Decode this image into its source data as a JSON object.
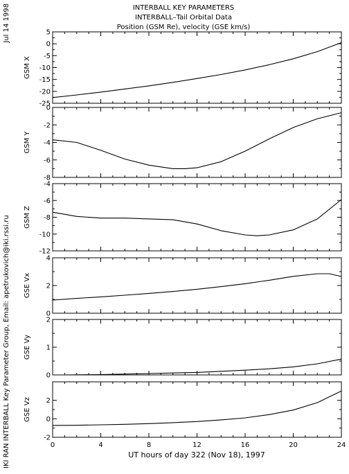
{
  "header": {
    "title_line1": "INTERBALL KEY PARAMETERS",
    "title_line2": "INTERBALL–Tail Orbital Data",
    "title_line3": "Position (GSM Re), velocity (GSE km/s)",
    "date_stamp": "Jul 14 1998",
    "credit": "IKI RAN INTERBALL Key Parameter Group, Email: apetrukovich@iki.rssi.ru"
  },
  "chart_data": {
    "type": "line",
    "xlabel": "UT hours of day 322 (Nov 18), 1997",
    "xlim": [
      0,
      24
    ],
    "xticks": [
      0,
      4,
      8,
      12,
      16,
      20,
      24
    ],
    "panels": [
      {
        "ylabel": "GSM X",
        "ylim": [
          -25,
          5
        ],
        "yticks": [
          -25,
          -20,
          -15,
          -10,
          -5,
          0,
          5
        ],
        "x": [
          0,
          2,
          4,
          6,
          8,
          10,
          12,
          14,
          16,
          18,
          20,
          22,
          24
        ],
        "values": [
          -22.6,
          -21.5,
          -20.3,
          -19.0,
          -17.7,
          -16.2,
          -14.6,
          -12.9,
          -11.0,
          -8.8,
          -6.3,
          -3.3,
          0.5
        ]
      },
      {
        "ylabel": "GSM Y",
        "ylim": [
          -8,
          0
        ],
        "yticks": [
          -8,
          -6,
          -4,
          -2,
          0
        ],
        "x": [
          0,
          2,
          4,
          6,
          8,
          10,
          11,
          12,
          14,
          16,
          18,
          20,
          22,
          24
        ],
        "values": [
          -3.7,
          -4.0,
          -4.9,
          -5.9,
          -6.6,
          -7.0,
          -7.0,
          -6.9,
          -6.2,
          -5.0,
          -3.6,
          -2.3,
          -1.3,
          -0.6
        ]
      },
      {
        "ylabel": "GSM Z",
        "ylim": [
          -12,
          -4
        ],
        "yticks": [
          -12,
          -10,
          -8,
          -6,
          -4
        ],
        "x": [
          0,
          2,
          4,
          6,
          8,
          10,
          12,
          14,
          16,
          17,
          18,
          20,
          22,
          24
        ],
        "values": [
          -7.4,
          -7.9,
          -8.1,
          -8.1,
          -8.2,
          -8.3,
          -8.8,
          -9.6,
          -10.1,
          -10.2,
          -10.1,
          -9.5,
          -8.2,
          -5.9
        ]
      },
      {
        "ylabel": "GSE Vx",
        "ylim": [
          0,
          4
        ],
        "yticks": [
          0,
          2,
          4
        ],
        "x": [
          0,
          2,
          4,
          6,
          8,
          10,
          12,
          14,
          16,
          18,
          20,
          22,
          23,
          24
        ],
        "values": [
          0.95,
          1.07,
          1.18,
          1.3,
          1.43,
          1.57,
          1.73,
          1.92,
          2.13,
          2.38,
          2.66,
          2.85,
          2.85,
          2.65
        ]
      },
      {
        "ylabel": "GSE Vy",
        "ylim": [
          0,
          2
        ],
        "yticks": [
          0,
          1,
          2
        ],
        "x": [
          1,
          4,
          8,
          12,
          14,
          16,
          18,
          20,
          22,
          24
        ],
        "values": [
          0.0,
          0.01,
          0.05,
          0.09,
          0.13,
          0.17,
          0.22,
          0.29,
          0.4,
          0.57
        ]
      },
      {
        "ylabel": "GSE Vz",
        "ylim": [
          -2,
          4
        ],
        "yticks": [
          -2,
          0,
          2
        ],
        "x": [
          0,
          2,
          4,
          6,
          8,
          10,
          12,
          14,
          16,
          18,
          20,
          22,
          24
        ],
        "values": [
          -0.72,
          -0.7,
          -0.65,
          -0.6,
          -0.52,
          -0.42,
          -0.3,
          -0.12,
          0.1,
          0.45,
          0.95,
          1.75,
          3.0
        ]
      }
    ]
  }
}
